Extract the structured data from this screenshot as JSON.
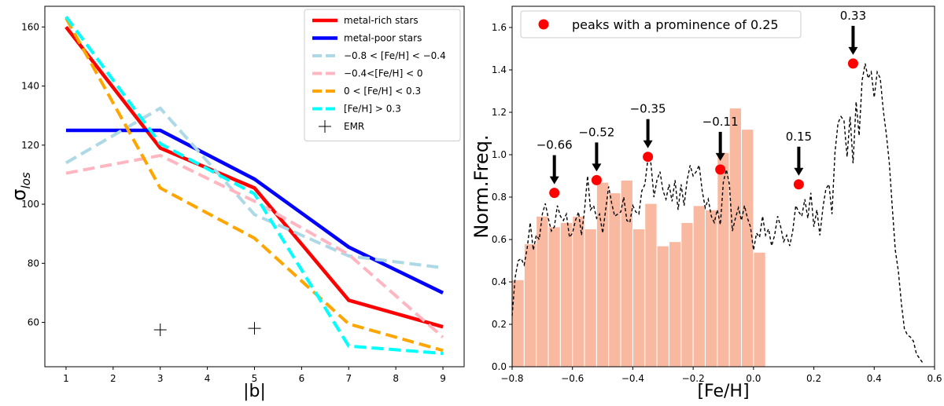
{
  "chart_data": [
    {
      "type": "line",
      "xlabel": "|b|",
      "ylabel": "σ_los",
      "ylabel_main": "σ",
      "ylabel_sub": "los",
      "xlim": [
        0.55,
        9.45
      ],
      "ylim": [
        45,
        167
      ],
      "xticks": [
        1,
        2,
        3,
        4,
        5,
        6,
        7,
        8,
        9
      ],
      "yticks": [
        60,
        80,
        100,
        120,
        140,
        160
      ],
      "legend_position": "top-right",
      "series": [
        {
          "name": "metal-rich stars",
          "color": "#ff0000",
          "dash": "solid",
          "x": [
            1,
            3,
            5,
            7,
            9
          ],
          "y": [
            160,
            119,
            105.5,
            67.5,
            58.5
          ]
        },
        {
          "name": "metal-poor stars",
          "color": "#0000ff",
          "dash": "solid",
          "x": [
            1,
            3,
            5,
            7,
            9
          ],
          "y": [
            125,
            125,
            108.5,
            85.5,
            70
          ]
        },
        {
          "name": "−0.8 < [Fe/H] < −0.4",
          "color": "#add8e6",
          "dash": "dashed",
          "x": [
            1,
            3,
            5,
            7,
            9
          ],
          "y": [
            114,
            132.5,
            96.5,
            82.5,
            78.5
          ]
        },
        {
          "name": "−0.4<[Fe/H] < 0",
          "color": "#ffb6c1",
          "dash": "dashed",
          "x": [
            1,
            3,
            5,
            7,
            9
          ],
          "y": [
            110.5,
            116.5,
            101,
            83,
            55
          ]
        },
        {
          "name": "0 < [Fe/H] < 0.3",
          "color": "#ffa500",
          "dash": "dashed",
          "x": [
            1,
            3,
            5,
            7,
            9
          ],
          "y": [
            163,
            105.5,
            88.5,
            59.5,
            50.5
          ]
        },
        {
          "name": "[Fe/H] > 0.3",
          "color": "#00ffff",
          "dash": "dashed",
          "x": [
            1,
            3,
            5,
            7,
            9
          ],
          "y": [
            163.5,
            120.5,
            103.5,
            52,
            49.5
          ]
        }
      ],
      "markers": {
        "name": "EMR",
        "symbol": "+",
        "color": "#000000",
        "x": [
          3,
          5
        ],
        "y": [
          57.5,
          58
        ]
      }
    },
    {
      "type": "bar",
      "xlabel": "[Fe/H]",
      "ylabel": "Norm.Freq.",
      "xlim": [
        -0.8,
        0.6
      ],
      "ylim": [
        0,
        1.7
      ],
      "xticks": [
        -0.8,
        -0.6,
        -0.4,
        -0.2,
        0.0,
        0.2,
        0.4,
        0.6
      ],
      "xtick_labels": [
        "−0.8",
        "−0.6",
        "−0.4",
        "−0.2",
        "0.0",
        "0.2",
        "0.4",
        "0.6"
      ],
      "yticks": [
        0.0,
        0.2,
        0.4,
        0.6,
        0.8,
        1.0,
        1.2,
        1.4,
        1.6
      ],
      "ytick_labels": [
        "0.0",
        "0.2",
        "0.4",
        "0.6",
        "0.8",
        "1.0",
        "1.2",
        "1.4",
        "1.6"
      ],
      "bar_color": "#f9b9a1",
      "bin_start": -0.8,
      "bin_width": 0.04,
      "bar_values": [
        0.41,
        0.58,
        0.71,
        0.66,
        0.68,
        0.71,
        0.65,
        0.87,
        0.82,
        0.88,
        0.65,
        0.77,
        0.57,
        0.59,
        0.68,
        0.76,
        0.74,
        1.01,
        1.22,
        1.12,
        0.54
      ],
      "density_curve": {
        "style": "dashed",
        "color": "#000000",
        "x_start": -0.8,
        "x_step": 0.01,
        "y": [
          0.24,
          0.42,
          0.5,
          0.51,
          0.48,
          0.56,
          0.68,
          0.55,
          0.62,
          0.6,
          0.72,
          0.77,
          0.7,
          0.64,
          0.66,
          0.76,
          0.71,
          0.69,
          0.72,
          0.61,
          0.63,
          0.69,
          0.73,
          0.62,
          0.74,
          0.9,
          0.74,
          0.76,
          0.7,
          0.72,
          0.63,
          0.74,
          0.85,
          0.77,
          0.71,
          0.72,
          0.73,
          0.8,
          0.69,
          0.68,
          0.76,
          0.73,
          0.72,
          0.83,
          0.86,
          0.98,
          0.96,
          0.8,
          0.88,
          0.92,
          0.83,
          0.79,
          0.86,
          0.78,
          0.88,
          0.74,
          0.86,
          0.76,
          0.88,
          0.95,
          0.9,
          0.92,
          0.95,
          0.83,
          0.75,
          0.79,
          0.71,
          0.68,
          0.74,
          0.67,
          0.87,
          0.93,
          0.86,
          0.64,
          0.7,
          0.75,
          0.69,
          0.76,
          0.7,
          0.66,
          0.55,
          0.63,
          0.61,
          0.71,
          0.62,
          0.65,
          0.57,
          0.62,
          0.71,
          0.66,
          0.59,
          0.62,
          0.57,
          0.64,
          0.76,
          0.73,
          0.71,
          0.79,
          0.7,
          0.82,
          0.66,
          0.74,
          0.62,
          0.75,
          0.84,
          0.86,
          0.72,
          1.01,
          1.15,
          1.18,
          1.16,
          0.99,
          1.18,
          0.96,
          1.25,
          1.09,
          1.35,
          1.43,
          1.36,
          1.39,
          1.27,
          1.39,
          1.36,
          1.21,
          1.1,
          0.96,
          0.75,
          0.55,
          0.45,
          0.3,
          0.18,
          0.15,
          0.14,
          0.12,
          0.06,
          0.04,
          0.02
        ]
      },
      "peaks_legend": "peaks with a prominence of 0.25",
      "legend_position": "top-left",
      "peaks": [
        {
          "x": -0.66,
          "y": 0.82,
          "label": "−0.66"
        },
        {
          "x": -0.52,
          "y": 0.88,
          "label": "−0.52"
        },
        {
          "x": -0.35,
          "y": 0.99,
          "label": "−0.35"
        },
        {
          "x": -0.11,
          "y": 0.93,
          "label": "−0.11"
        },
        {
          "x": 0.15,
          "y": 0.86,
          "label": "0.15"
        },
        {
          "x": 0.33,
          "y": 1.43,
          "label": "0.33"
        }
      ]
    }
  ]
}
